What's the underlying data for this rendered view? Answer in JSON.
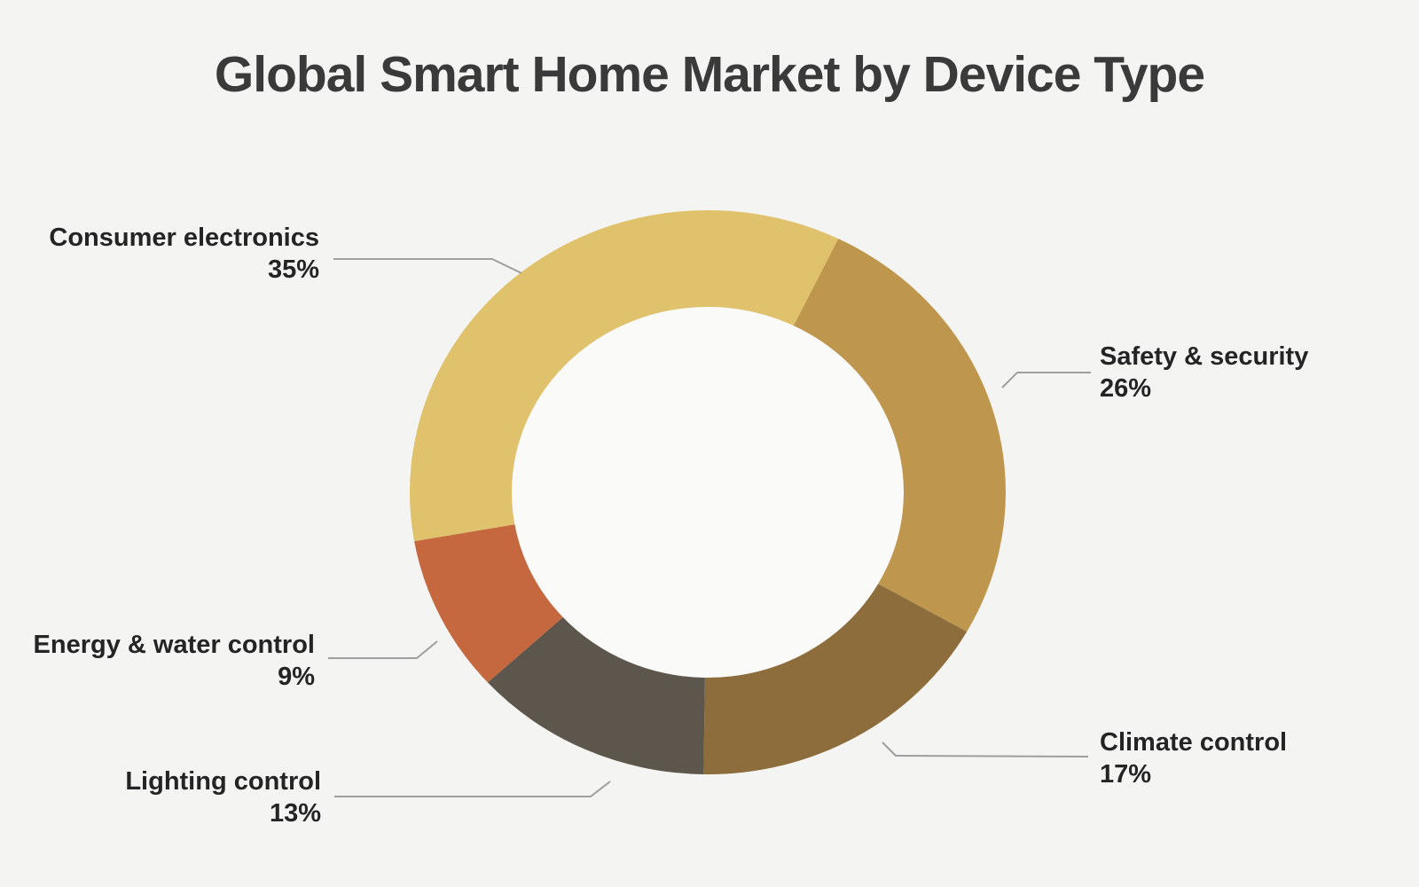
{
  "title": "Global Smart Home Market by Device Type",
  "chart_data": {
    "type": "pie",
    "subtype": "donut",
    "title": "Global Smart Home Market by Device Type",
    "unit": "%",
    "segments": [
      {
        "label": "Consumer electronics",
        "value": 35,
        "display_value": "35%",
        "color": "#DFC26B"
      },
      {
        "label": "Safety & security",
        "value": 26,
        "display_value": "26%",
        "color": "#BF964E"
      },
      {
        "label": "Climate control",
        "value": 17,
        "display_value": "17%",
        "color": "#8C6D3B"
      },
      {
        "label": "Lighting control",
        "value": 13,
        "display_value": "13%",
        "color": "#5C564C"
      },
      {
        "label": "Energy & water control",
        "value": 9,
        "display_value": "9%",
        "color": "#C5683F"
      }
    ],
    "start_angle_deg": 260,
    "direction": "clockwise",
    "donut_hole_ratio": 0.66,
    "legend_position": "outside-callout-labels",
    "grid": false
  },
  "style": {
    "background": "#F4F4F2",
    "hole_color": "#FAFAF9",
    "title_color": "#3A3A3A",
    "label_color": "#242424",
    "leader_line_color": "#9E9E9E"
  }
}
